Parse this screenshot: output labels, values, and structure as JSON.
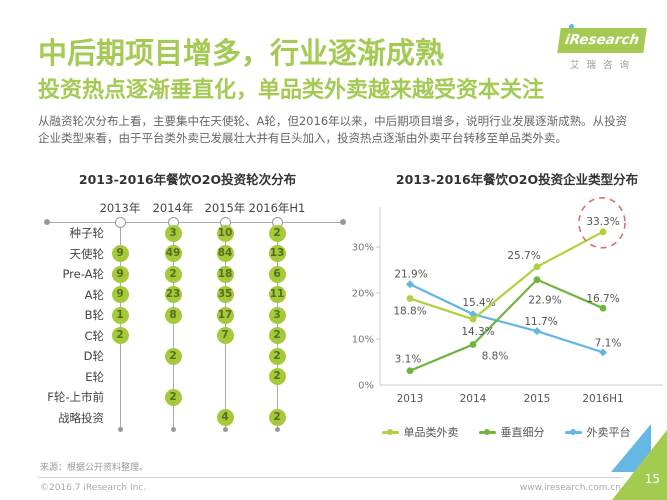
{
  "header": {
    "title": "中后期项目增多，行业逐渐成熟",
    "subtitle": "投资热点逐渐垂直化，单品类外卖越来越受资本关注",
    "body": "从融资轮次分布上看，主要集中在天使轮、A轮，但2016年以来，中后期项目增多，说明行业发展逐渐成熟。从投资企业类型来看，由于平台类外卖已发展壮大并有巨头加入，投资热点逐渐由外卖平台转移至单品类外卖。"
  },
  "logo": {
    "brand": "iResearch",
    "brand_cn": "艾瑞咨询"
  },
  "colors": {
    "heading_green": "#a4ca54",
    "circle_green": "#a6c93c",
    "highlight_red": "#dd6e6e",
    "corner_blue": "#66b8e4"
  },
  "chart_data": [
    {
      "type": "table",
      "title": "2013-2016年餐饮O2O投资轮次分布",
      "columns": [
        "2013年",
        "2014年",
        "2015年",
        "2016年H1"
      ],
      "rows": [
        {
          "label": "种子轮",
          "values": [
            null,
            3,
            10,
            2
          ]
        },
        {
          "label": "天使轮",
          "values": [
            9,
            49,
            84,
            13
          ]
        },
        {
          "label": "Pre-A轮",
          "values": [
            9,
            2,
            18,
            6
          ]
        },
        {
          "label": "A轮",
          "values": [
            9,
            23,
            35,
            11
          ]
        },
        {
          "label": "B轮",
          "values": [
            1,
            8,
            17,
            3
          ]
        },
        {
          "label": "C轮",
          "values": [
            2,
            null,
            7,
            2
          ]
        },
        {
          "label": "D轮",
          "values": [
            null,
            2,
            null,
            2
          ]
        },
        {
          "label": "E轮",
          "values": [
            null,
            null,
            null,
            2
          ]
        },
        {
          "label": "F轮-上市前",
          "values": [
            null,
            2,
            null,
            null
          ]
        },
        {
          "label": "战略投资",
          "values": [
            null,
            null,
            4,
            2
          ]
        }
      ]
    },
    {
      "type": "line",
      "title": "2013-2016年餐饮O2O投资企业类型分布",
      "x": [
        "2013",
        "2014",
        "2015",
        "2016H1"
      ],
      "series": [
        {
          "name": "单品类外卖",
          "color": "#afd13f",
          "values": [
            18.8,
            14.3,
            25.7,
            33.3
          ],
          "labels": [
            "18.8%",
            "14.3%",
            "25.7%",
            "33.3%"
          ]
        },
        {
          "name": "垂直细分",
          "color": "#6eb43e",
          "values": [
            3.1,
            8.8,
            22.9,
            16.7
          ],
          "labels": [
            "3.1%",
            "8.8%",
            "22.9%",
            "16.7%"
          ]
        },
        {
          "name": "外卖平台",
          "color": "#64b6e2",
          "values": [
            21.9,
            15.4,
            11.7,
            7.1
          ],
          "labels": [
            "21.9%",
            "15.4%",
            "11.7%",
            "7.1%"
          ]
        }
      ],
      "ylabel_ticks": [
        "0%",
        "10%",
        "20%",
        "30%"
      ],
      "ytick_values": [
        0,
        10,
        20,
        30
      ],
      "ylim": [
        0,
        35
      ],
      "grid": false,
      "legend_position": "bottom",
      "highlight": {
        "series": 0,
        "point": 3,
        "style": "dashed-circle",
        "color": "#dd6e6e"
      }
    }
  ],
  "footer": {
    "source": "来源：根据公开资料整理。",
    "copyright": "©2016.7 iResearch Inc.",
    "website": "www.iresearch.com.cn",
    "page_number": "15"
  }
}
